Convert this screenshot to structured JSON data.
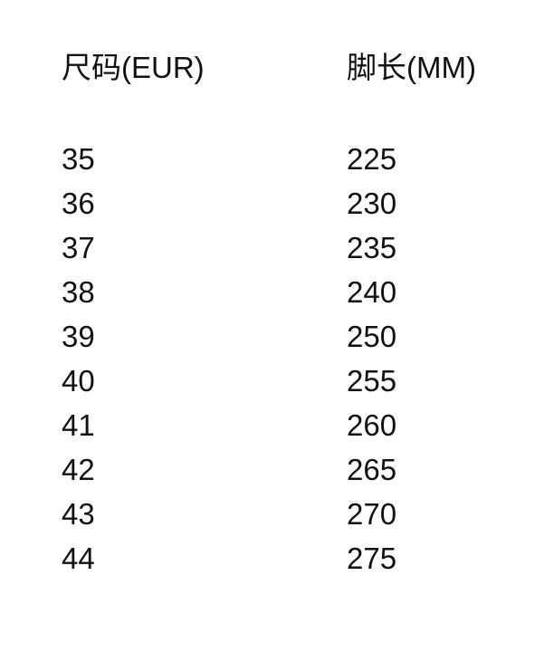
{
  "table": {
    "headers": [
      "尺码(EUR)",
      "脚长(MM)"
    ],
    "rows": [
      [
        "35",
        "225"
      ],
      [
        "36",
        "230"
      ],
      [
        "37",
        "235"
      ],
      [
        "38",
        "240"
      ],
      [
        "39",
        "250"
      ],
      [
        "40",
        "255"
      ],
      [
        "41",
        "260"
      ],
      [
        "42",
        "265"
      ],
      [
        "43",
        "270"
      ],
      [
        "44",
        "275"
      ]
    ]
  }
}
